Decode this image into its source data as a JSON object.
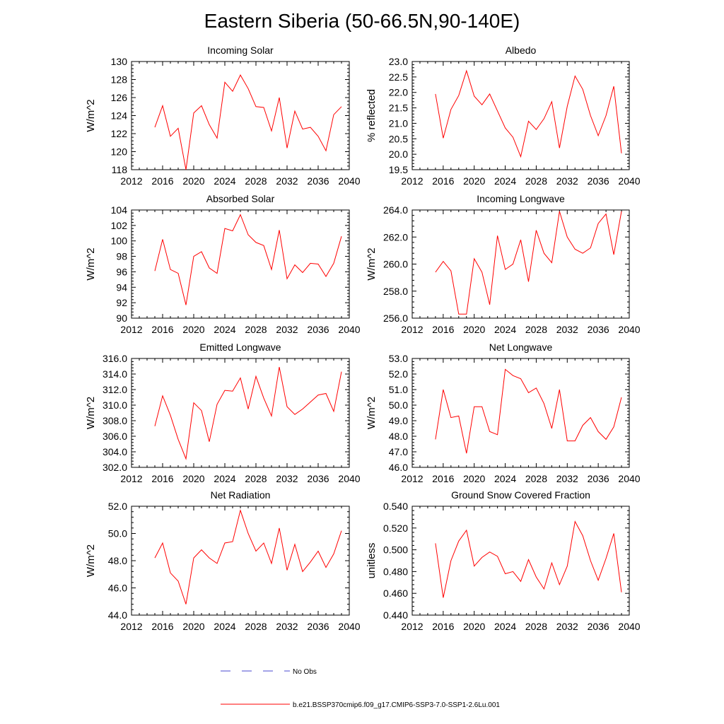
{
  "title": "Eastern Siberia (50-66.5N,90-140E)",
  "colors": {
    "series": "#ff0000",
    "obs": "#4a4ad0",
    "axis": "#000000"
  },
  "legend": {
    "obs_label": "No Obs",
    "model_label": "b.e21.BSSP370cmip6.f09_g17.CMIP6-SSP3-7.0-SSP1-2.6Lu.001"
  },
  "chart_data": [
    {
      "type": "line",
      "title": "Incoming Solar",
      "ylabel": "W/m^2",
      "xlim": [
        2012,
        2040
      ],
      "ylim": [
        118,
        130
      ],
      "xticks": [
        "2012",
        "2016",
        "2020",
        "2024",
        "2028",
        "2032",
        "2036",
        "2040"
      ],
      "yticks": [
        "118",
        "120",
        "122",
        "124",
        "126",
        "128",
        "130"
      ],
      "x": [
        2015,
        2016,
        2017,
        2018,
        2019,
        2020,
        2021,
        2022,
        2023,
        2024,
        2025,
        2026,
        2027,
        2028,
        2029,
        2030,
        2031,
        2032,
        2033,
        2034,
        2035,
        2036,
        2037,
        2038,
        2039
      ],
      "series": [
        {
          "values": [
            122.7,
            125.1,
            121.7,
            122.6,
            118.0,
            124.3,
            125.1,
            123.0,
            121.5,
            127.7,
            126.7,
            128.5,
            127.0,
            125.0,
            124.9,
            122.3,
            126.0,
            120.4,
            124.5,
            122.5,
            122.7,
            121.7,
            120.1,
            124.1,
            125.0
          ]
        }
      ]
    },
    {
      "type": "line",
      "title": "Albedo",
      "ylabel": "% reflected",
      "xlim": [
        2012,
        2040
      ],
      "ylim": [
        19.5,
        23.0
      ],
      "xticks": [
        "2012",
        "2016",
        "2020",
        "2024",
        "2028",
        "2032",
        "2036",
        "2040"
      ],
      "yticks": [
        "19.5",
        "20.0",
        "20.5",
        "21.0",
        "21.5",
        "22.0",
        "22.5",
        "23.0"
      ],
      "x": [
        2015,
        2016,
        2017,
        2018,
        2019,
        2020,
        2021,
        2022,
        2023,
        2024,
        2025,
        2026,
        2027,
        2028,
        2029,
        2030,
        2031,
        2032,
        2033,
        2034,
        2035,
        2036,
        2037,
        2038,
        2039
      ],
      "series": [
        {
          "values": [
            21.95,
            20.52,
            21.45,
            21.9,
            22.7,
            21.88,
            21.6,
            21.95,
            21.4,
            20.85,
            20.55,
            19.92,
            21.07,
            20.8,
            21.15,
            21.7,
            20.2,
            21.55,
            22.53,
            22.1,
            21.25,
            20.6,
            21.25,
            22.2,
            20.03
          ]
        }
      ]
    },
    {
      "type": "line",
      "title": "Absorbed Solar",
      "ylabel": "W/m^2",
      "xlim": [
        2012,
        2040
      ],
      "ylim": [
        90,
        104
      ],
      "xticks": [
        "2012",
        "2016",
        "2020",
        "2024",
        "2028",
        "2032",
        "2036",
        "2040"
      ],
      "yticks": [
        "90",
        "92",
        "94",
        "96",
        "98",
        "100",
        "102",
        "104"
      ],
      "x": [
        2015,
        2016,
        2017,
        2018,
        2019,
        2020,
        2021,
        2022,
        2023,
        2024,
        2025,
        2026,
        2027,
        2028,
        2029,
        2030,
        2031,
        2032,
        2033,
        2034,
        2035,
        2036,
        2037,
        2038,
        2039
      ],
      "series": [
        {
          "values": [
            96.1,
            100.2,
            96.3,
            95.8,
            91.7,
            98.0,
            98.6,
            96.5,
            95.8,
            101.6,
            101.3,
            103.4,
            100.8,
            99.8,
            99.4,
            96.3,
            101.4,
            95.1,
            96.9,
            95.9,
            97.1,
            97.0,
            95.4,
            97.1,
            100.6
          ]
        }
      ]
    },
    {
      "type": "line",
      "title": "Incoming Longwave",
      "ylabel": "W/m^2",
      "xlim": [
        2012,
        2040
      ],
      "ylim": [
        256.0,
        264.0
      ],
      "xticks": [
        "2012",
        "2016",
        "2020",
        "2024",
        "2028",
        "2032",
        "2036",
        "2040"
      ],
      "yticks": [
        "256.0",
        "258.0",
        "260.0",
        "262.0",
        "264.0"
      ],
      "x": [
        2015,
        2016,
        2017,
        2018,
        2019,
        2020,
        2021,
        2022,
        2023,
        2024,
        2025,
        2026,
        2027,
        2028,
        2029,
        2030,
        2031,
        2032,
        2033,
        2034,
        2035,
        2036,
        2037,
        2038,
        2039
      ],
      "series": [
        {
          "values": [
            259.4,
            260.2,
            259.5,
            256.3,
            256.3,
            260.4,
            259.4,
            257.0,
            262.1,
            259.6,
            260.0,
            261.8,
            258.7,
            262.5,
            260.8,
            260.1,
            263.9,
            262.0,
            261.1,
            260.8,
            261.2,
            263.0,
            263.7,
            260.7,
            263.9
          ]
        }
      ]
    },
    {
      "type": "line",
      "title": "Emitted Longwave",
      "ylabel": "W/m^2",
      "xlim": [
        2012,
        2040
      ],
      "ylim": [
        302.0,
        316.0
      ],
      "xticks": [
        "2012",
        "2016",
        "2020",
        "2024",
        "2028",
        "2032",
        "2036",
        "2040"
      ],
      "yticks": [
        "302.0",
        "304.0",
        "306.0",
        "308.0",
        "310.0",
        "312.0",
        "314.0",
        "316.0"
      ],
      "x": [
        2015,
        2016,
        2017,
        2018,
        2019,
        2020,
        2021,
        2022,
        2023,
        2024,
        2025,
        2026,
        2027,
        2028,
        2029,
        2030,
        2031,
        2032,
        2033,
        2034,
        2035,
        2036,
        2037,
        2038,
        2039
      ],
      "series": [
        {
          "values": [
            307.3,
            311.2,
            308.7,
            305.6,
            303.1,
            310.3,
            309.3,
            305.3,
            310.1,
            311.9,
            311.8,
            313.5,
            309.5,
            313.7,
            310.9,
            308.6,
            314.9,
            309.8,
            308.8,
            309.5,
            310.4,
            311.3,
            311.5,
            309.2,
            314.3
          ]
        }
      ]
    },
    {
      "type": "line",
      "title": "Net Longwave",
      "ylabel": "W/m^2",
      "xlim": [
        2012,
        2040
      ],
      "ylim": [
        46.0,
        53.0
      ],
      "xticks": [
        "2012",
        "2016",
        "2020",
        "2024",
        "2028",
        "2032",
        "2036",
        "2040"
      ],
      "yticks": [
        "46.0",
        "47.0",
        "48.0",
        "49.0",
        "50.0",
        "51.0",
        "52.0",
        "53.0"
      ],
      "x": [
        2015,
        2016,
        2017,
        2018,
        2019,
        2020,
        2021,
        2022,
        2023,
        2024,
        2025,
        2026,
        2027,
        2028,
        2029,
        2030,
        2031,
        2032,
        2033,
        2034,
        2035,
        2036,
        2037,
        2038,
        2039
      ],
      "series": [
        {
          "values": [
            47.8,
            51.0,
            49.2,
            49.3,
            46.9,
            49.9,
            49.9,
            48.3,
            48.1,
            52.3,
            51.9,
            51.7,
            50.8,
            51.1,
            50.1,
            48.5,
            51.0,
            47.7,
            47.7,
            48.7,
            49.2,
            48.3,
            47.8,
            48.6,
            50.5
          ]
        }
      ]
    },
    {
      "type": "line",
      "title": "Net Radiation",
      "ylabel": "W/m^2",
      "xlim": [
        2012,
        2040
      ],
      "ylim": [
        44.0,
        52.0
      ],
      "xticks": [
        "2012",
        "2016",
        "2020",
        "2024",
        "2028",
        "2032",
        "2036",
        "2040"
      ],
      "yticks": [
        "44.0",
        "46.0",
        "48.0",
        "50.0",
        "52.0"
      ],
      "x": [
        2015,
        2016,
        2017,
        2018,
        2019,
        2020,
        2021,
        2022,
        2023,
        2024,
        2025,
        2026,
        2027,
        2028,
        2029,
        2030,
        2031,
        2032,
        2033,
        2034,
        2035,
        2036,
        2037,
        2038,
        2039
      ],
      "series": [
        {
          "values": [
            48.2,
            49.3,
            47.1,
            46.5,
            44.8,
            48.2,
            48.8,
            48.2,
            47.8,
            49.3,
            49.4,
            51.7,
            50.0,
            48.7,
            49.3,
            47.8,
            50.4,
            47.3,
            49.2,
            47.2,
            47.9,
            48.7,
            47.5,
            48.5,
            50.2
          ]
        }
      ]
    },
    {
      "type": "line",
      "title": "Ground Snow Covered Fraction",
      "ylabel": "unitless",
      "xlim": [
        2012,
        2040
      ],
      "ylim": [
        0.44,
        0.54
      ],
      "xticks": [
        "2012",
        "2016",
        "2020",
        "2024",
        "2028",
        "2032",
        "2036",
        "2040"
      ],
      "yticks": [
        "0.440",
        "0.460",
        "0.480",
        "0.500",
        "0.520",
        "0.540"
      ],
      "x": [
        2015,
        2016,
        2017,
        2018,
        2019,
        2020,
        2021,
        2022,
        2023,
        2024,
        2025,
        2026,
        2027,
        2028,
        2029,
        2030,
        2031,
        2032,
        2033,
        2034,
        2035,
        2036,
        2037,
        2038,
        2039
      ],
      "series": [
        {
          "values": [
            0.506,
            0.456,
            0.49,
            0.508,
            0.518,
            0.485,
            0.493,
            0.498,
            0.494,
            0.478,
            0.48,
            0.471,
            0.491,
            0.475,
            0.464,
            0.488,
            0.468,
            0.485,
            0.526,
            0.513,
            0.49,
            0.472,
            0.492,
            0.515,
            0.461
          ]
        }
      ]
    }
  ]
}
